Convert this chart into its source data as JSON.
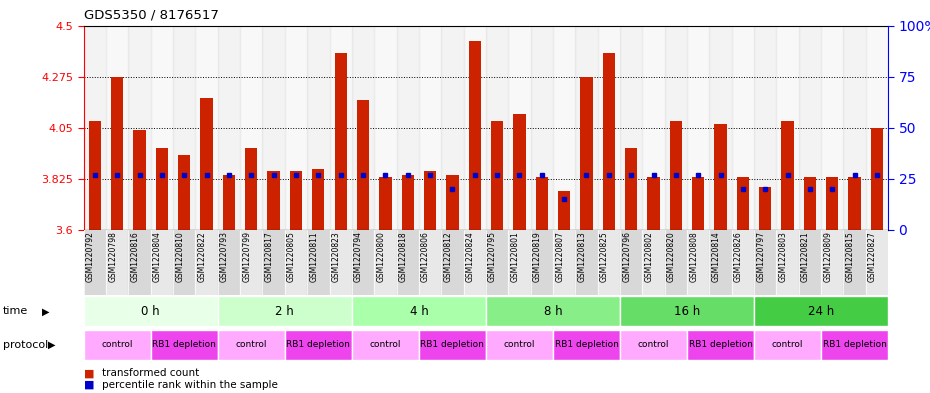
{
  "title": "GDS5350 / 8176517",
  "samples": [
    "GSM1220792",
    "GSM1220798",
    "GSM1220816",
    "GSM1220804",
    "GSM1220810",
    "GSM1220822",
    "GSM1220793",
    "GSM1220799",
    "GSM1220817",
    "GSM1220805",
    "GSM1220811",
    "GSM1220823",
    "GSM1220794",
    "GSM1220800",
    "GSM1220818",
    "GSM1220806",
    "GSM1220812",
    "GSM1220824",
    "GSM1220795",
    "GSM1220801",
    "GSM1220819",
    "GSM1220807",
    "GSM1220813",
    "GSM1220825",
    "GSM1220796",
    "GSM1220802",
    "GSM1220820",
    "GSM1220808",
    "GSM1220814",
    "GSM1220826",
    "GSM1220797",
    "GSM1220803",
    "GSM1220821",
    "GSM1220809",
    "GSM1220815",
    "GSM1220827"
  ],
  "transformed_count": [
    4.08,
    4.275,
    4.04,
    3.96,
    3.93,
    4.18,
    3.84,
    3.96,
    3.86,
    3.86,
    3.87,
    4.38,
    4.17,
    3.835,
    3.84,
    3.86,
    3.84,
    4.43,
    4.08,
    4.11,
    3.835,
    3.77,
    4.275,
    4.38,
    3.96,
    3.835,
    4.08,
    3.835,
    4.065,
    3.835,
    3.79,
    4.08,
    3.835,
    3.835,
    3.835,
    4.05
  ],
  "percentile_rank": [
    27,
    27,
    27,
    27,
    27,
    27,
    27,
    27,
    27,
    27,
    27,
    27,
    27,
    27,
    27,
    27,
    20,
    27,
    27,
    27,
    27,
    15,
    27,
    27,
    27,
    27,
    27,
    27,
    27,
    20,
    20,
    27,
    20,
    20,
    27,
    27
  ],
  "time_groups": [
    {
      "label": "0 h",
      "start": 0,
      "end": 6,
      "color": "#e8ffe8"
    },
    {
      "label": "2 h",
      "start": 6,
      "end": 12,
      "color": "#ccffcc"
    },
    {
      "label": "4 h",
      "start": 12,
      "end": 18,
      "color": "#aaffaa"
    },
    {
      "label": "8 h",
      "start": 18,
      "end": 24,
      "color": "#88ee88"
    },
    {
      "label": "16 h",
      "start": 24,
      "end": 30,
      "color": "#66dd66"
    },
    {
      "label": "24 h",
      "start": 30,
      "end": 36,
      "color": "#44cc44"
    }
  ],
  "protocol_groups": [
    {
      "label": "control",
      "start": 0,
      "end": 3,
      "color": "#ffaaff"
    },
    {
      "label": "RB1 depletion",
      "start": 3,
      "end": 6,
      "color": "#ee44ee"
    },
    {
      "label": "control",
      "start": 6,
      "end": 9,
      "color": "#ffaaff"
    },
    {
      "label": "RB1 depletion",
      "start": 9,
      "end": 12,
      "color": "#ee44ee"
    },
    {
      "label": "control",
      "start": 12,
      "end": 15,
      "color": "#ffaaff"
    },
    {
      "label": "RB1 depletion",
      "start": 15,
      "end": 18,
      "color": "#ee44ee"
    },
    {
      "label": "control",
      "start": 18,
      "end": 21,
      "color": "#ffaaff"
    },
    {
      "label": "RB1 depletion",
      "start": 21,
      "end": 24,
      "color": "#ee44ee"
    },
    {
      "label": "control",
      "start": 24,
      "end": 27,
      "color": "#ffaaff"
    },
    {
      "label": "RB1 depletion",
      "start": 27,
      "end": 30,
      "color": "#ee44ee"
    },
    {
      "label": "control",
      "start": 30,
      "end": 33,
      "color": "#ffaaff"
    },
    {
      "label": "RB1 depletion",
      "start": 33,
      "end": 36,
      "color": "#ee44ee"
    }
  ],
  "ylim_left": [
    3.6,
    4.5
  ],
  "ylim_right": [
    0,
    100
  ],
  "yticks_left": [
    3.6,
    3.825,
    4.05,
    4.275,
    4.5
  ],
  "yticks_right": [
    0,
    25,
    50,
    75,
    100
  ],
  "bar_color": "#cc2200",
  "dot_color": "#0000cc",
  "base_value": 3.6,
  "col_colors": [
    "#d8d8d8",
    "#e8e8e8"
  ]
}
